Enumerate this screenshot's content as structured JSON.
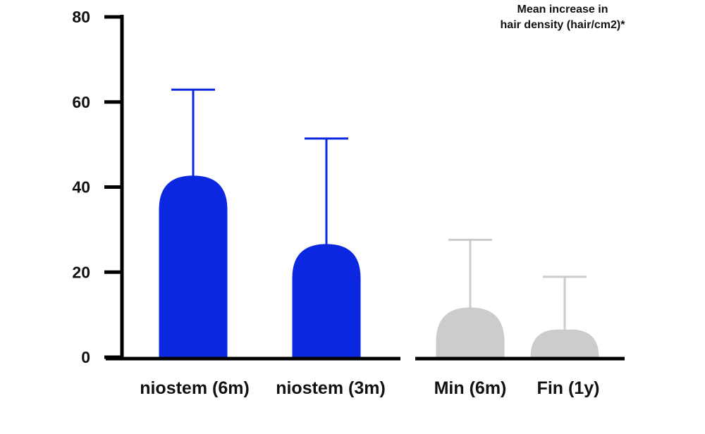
{
  "chart_data": {
    "type": "bar",
    "title": "",
    "xlabel": "",
    "ylabel": "",
    "ylim": [
      0,
      80
    ],
    "yticks": [
      "0",
      "20",
      "40",
      "60",
      "80"
    ],
    "grid": false,
    "annotation": [
      "Mean increase in",
      "hair density (hair/cm2)*"
    ],
    "categories": [
      "niostem (6m)",
      "niostem (3m)",
      "Min (6m)",
      "Fin (1y)"
    ],
    "values": [
      42.7,
      26.6,
      11.7,
      6.5
    ],
    "error_upper": [
      62.9,
      51.4,
      27.6,
      18.9
    ],
    "colors": [
      "#0b27e0",
      "#0b27e0",
      "#cccccc",
      "#cccccc"
    ],
    "groups": [
      [
        0,
        1
      ],
      [
        2,
        3
      ]
    ]
  }
}
